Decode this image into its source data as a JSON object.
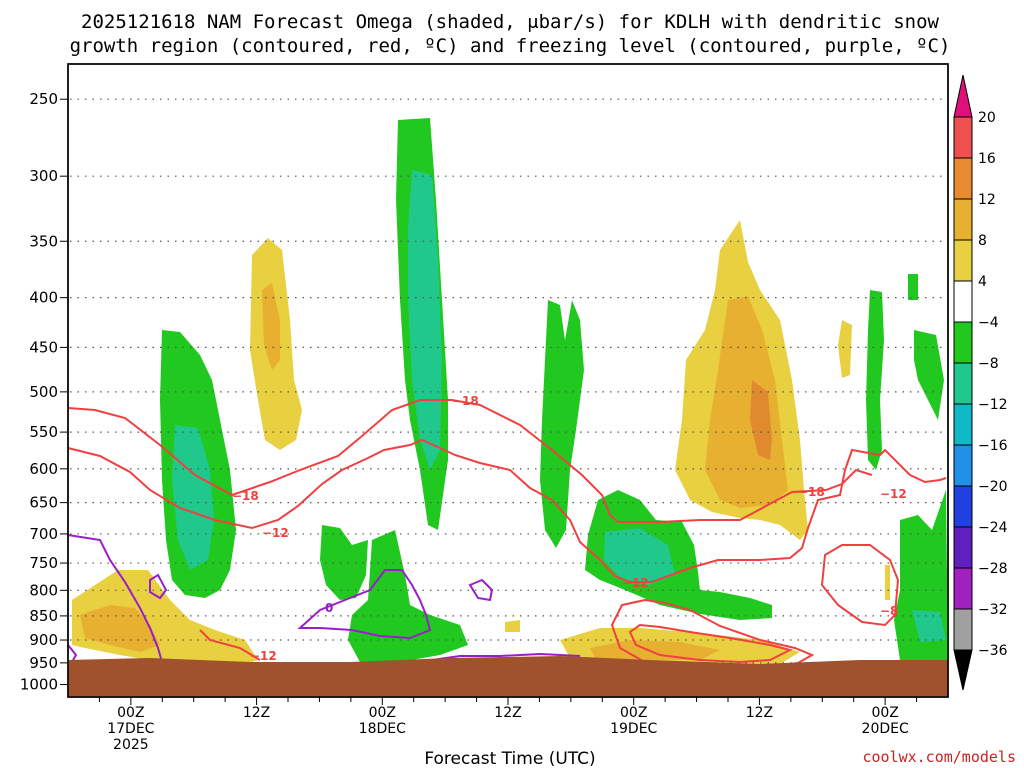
{
  "chart_data": {
    "type": "time-height",
    "title_lines": [
      "2025121618 NAM Forecast Omega (shaded, μbar/s) for KDLH with dendritic snow",
      "growth region (contoured, red, ºC) and freezing level (contoured, purple, ºC)"
    ],
    "xlabel": "Forecast Time (UTC)",
    "watermark": "coolwx.com/models",
    "y_ticks": [
      "250",
      "300",
      "350",
      "400",
      "450",
      "500",
      "550",
      "600",
      "650",
      "700",
      "750",
      "800",
      "850",
      "900",
      "950",
      "1000"
    ],
    "x_ticks": [
      {
        "hour": 6,
        "lines": [
          "00Z",
          "17DEC",
          "2025"
        ]
      },
      {
        "hour": 18,
        "lines": [
          "12Z"
        ]
      },
      {
        "hour": 30,
        "lines": [
          "00Z",
          "18DEC"
        ]
      },
      {
        "hour": 42,
        "lines": [
          "12Z"
        ]
      },
      {
        "hour": 54,
        "lines": [
          "00Z",
          "19DEC"
        ]
      },
      {
        "hour": 66,
        "lines": [
          "12Z"
        ]
      },
      {
        "hour": 78,
        "lines": [
          "00Z",
          "20DEC"
        ]
      }
    ],
    "x_range_hours": [
      0,
      84
    ],
    "colorbar": {
      "labels": [
        "20",
        "16",
        "12",
        "8",
        "4",
        "−4",
        "−8",
        "−12",
        "−16",
        "−20",
        "−24",
        "−28",
        "−32",
        "−36"
      ],
      "colors": [
        "#f05050",
        "#e88a30",
        "#e8b030",
        "#e8d040",
        "#ffffff",
        "#20c820",
        "#20c88c",
        "#10b8c8",
        "#2090e8",
        "#2040e0",
        "#6020c0",
        "#a020c0",
        "#a0a0a0"
      ]
    },
    "contours": {
      "dgz_red_labels": [
        "−18",
        "−12",
        "−18",
        "−12",
        "−18",
        "−12",
        "−12",
        "−8"
      ],
      "freezing_purple_labels": [
        "0"
      ]
    },
    "colors": {
      "ground": "#a0522d",
      "dgz": "#f04040",
      "freezing": "#9a1ec8",
      "gridline": "#555555"
    }
  }
}
